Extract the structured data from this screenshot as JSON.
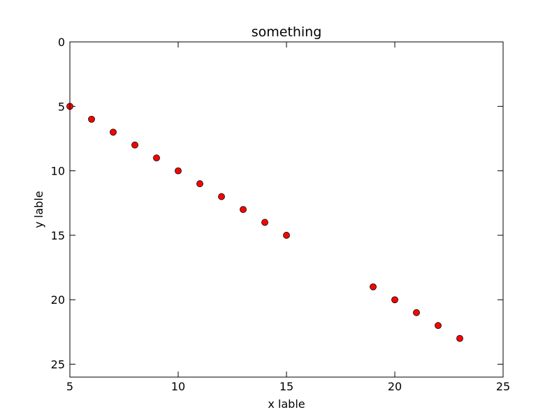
{
  "chart_data": {
    "type": "scatter",
    "title": "something",
    "xlabel": "x lable",
    "ylabel": "y lable",
    "xlim": [
      5,
      25
    ],
    "ylim": [
      0,
      26
    ],
    "y_inverted": true,
    "grid": false,
    "xticks": [
      5,
      10,
      15,
      20,
      25
    ],
    "yticks": [
      0,
      5,
      10,
      15,
      20,
      25
    ],
    "xtick_labels": [
      "5",
      "10",
      "15",
      "20",
      "25"
    ],
    "ytick_labels": [
      "0",
      "5",
      "10",
      "15",
      "20",
      "25"
    ],
    "series": [
      {
        "x": [
          5,
          6,
          7,
          8,
          9,
          10,
          11,
          12,
          13,
          14,
          15,
          19,
          20,
          21,
          22,
          23
        ],
        "y": [
          5,
          6,
          7,
          8,
          9,
          10,
          11,
          12,
          13,
          14,
          15,
          19,
          20,
          21,
          22,
          23
        ],
        "marker": "circle",
        "color": "#ff0000",
        "edgecolor": "#000000"
      }
    ]
  }
}
